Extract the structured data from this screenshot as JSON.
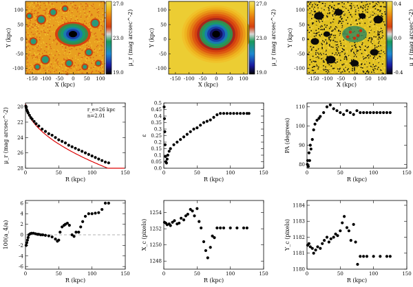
{
  "figure": {
    "panels": [
      {
        "id": "p1",
        "type": "heatmap",
        "xlabel": "X (kpc)",
        "ylabel": "Y (kpc)",
        "xticks": [
          -150,
          -100,
          -50,
          0,
          50,
          100
        ],
        "yticks": [
          -100,
          -50,
          0,
          50,
          100
        ],
        "xlim": [
          -175,
          115
        ],
        "ylim": [
          -120,
          130
        ],
        "colorbar": {
          "label": "μ_r (mag arcsec^-2)",
          "labels": [
            "27.0",
            "23.0",
            "19.0"
          ],
          "vmin": 19.0,
          "vmax": 27.0
        },
        "description": "image"
      },
      {
        "id": "p2",
        "type": "heatmap",
        "xlabel": "X (kpc)",
        "ylabel": "Y (kpc)",
        "xticks": [
          -150,
          -100,
          -50,
          0,
          50,
          100
        ],
        "yticks": [
          -100,
          -50,
          0,
          50,
          100
        ],
        "xlim": [
          -175,
          115
        ],
        "ylim": [
          -120,
          130
        ],
        "colorbar": {
          "label": "μ_r (mag arcsec^-2)",
          "labels": [
            "27.0",
            "23.0",
            "19.0"
          ],
          "vmin": 19.0,
          "vmax": 27.0
        },
        "description": "model"
      },
      {
        "id": "p3",
        "type": "heatmap",
        "xlabel": "X (kpc)",
        "ylabel": "Y (kpc)",
        "xticks": [
          -150,
          -100,
          -50,
          0,
          50,
          100
        ],
        "yticks": [
          -100,
          -50,
          0,
          50,
          100
        ],
        "xlim": [
          -175,
          115
        ],
        "ylim": [
          -120,
          130
        ],
        "colorbar": {
          "label": "μ_r (mag arcsec^-2)",
          "labels": [
            "0.4",
            "0.0",
            "-0.4"
          ],
          "vmin": -0.4,
          "vmax": 0.4
        },
        "description": "residual"
      }
    ]
  },
  "chart_data": [
    {
      "id": "p4",
      "type": "scatter",
      "xlabel": "R (kpc)",
      "ylabel": "μ_r (mag arcsec^-2)",
      "xlim": [
        0,
        150
      ],
      "ylim": [
        28,
        19.5
      ],
      "xticks": [
        0,
        50,
        100,
        150
      ],
      "yticks": [
        20,
        22,
        24,
        26,
        28
      ],
      "annotations": [
        "r_e=26 kpc",
        "n=2.01"
      ],
      "fit": {
        "type": "sersic",
        "re": 26,
        "n": 2.01,
        "mu_e": 23.3,
        "color": "#dd0000"
      },
      "series": [
        {
          "name": "μ_r",
          "x": [
            0.5,
            1,
            2,
            3,
            4,
            6,
            8,
            10,
            13,
            16,
            20,
            25,
            30,
            35,
            40,
            45,
            50,
            55,
            60,
            65,
            70,
            75,
            80,
            85,
            90,
            95,
            100,
            105,
            110,
            115,
            120,
            125
          ],
          "y": [
            19.9,
            20.1,
            20.4,
            20.6,
            20.8,
            21.1,
            21.4,
            21.6,
            21.9,
            22.2,
            22.5,
            22.9,
            23.2,
            23.5,
            23.7,
            24.0,
            24.3,
            24.5,
            24.7,
            25.0,
            25.2,
            25.4,
            25.6,
            25.8,
            26.0,
            26.2,
            26.4,
            26.6,
            26.8,
            27.0,
            27.2,
            27.3
          ]
        }
      ]
    },
    {
      "id": "p5",
      "type": "scatter",
      "xlabel": "R (kpc)",
      "ylabel": "ε",
      "xlim": [
        0,
        150
      ],
      "ylim": [
        0,
        0.5
      ],
      "xticks": [
        0,
        50,
        100,
        150
      ],
      "yticks": [
        0.0,
        0.05,
        0.1,
        0.15,
        0.2,
        0.25,
        0.3,
        0.35,
        0.4,
        0.45,
        0.5
      ],
      "ytickLabels": [
        "0.0",
        "0.05",
        "0.1",
        "0.15",
        "0.2",
        "0.25",
        "0.3",
        "0.35",
        "0.4",
        "0.45",
        "0.5"
      ],
      "series": [
        {
          "name": "ε",
          "x": [
            0.5,
            1,
            1.5,
            2,
            2.5,
            3,
            4,
            5,
            6,
            8,
            10,
            15,
            20,
            25,
            30,
            35,
            40,
            45,
            50,
            55,
            60,
            65,
            70,
            75,
            80,
            85,
            90,
            95,
            100,
            105,
            110,
            115,
            120,
            125,
            128
          ],
          "y": [
            0.47,
            0.38,
            0.28,
            0.18,
            0.09,
            0.05,
            0.04,
            0.07,
            0.1,
            0.13,
            0.15,
            0.18,
            0.2,
            0.22,
            0.24,
            0.26,
            0.28,
            0.3,
            0.31,
            0.33,
            0.35,
            0.36,
            0.37,
            0.39,
            0.41,
            0.42,
            0.42,
            0.42,
            0.42,
            0.42,
            0.42,
            0.42,
            0.42,
            0.42,
            0.42
          ]
        }
      ]
    },
    {
      "id": "p6",
      "type": "scatter",
      "xlabel": "R (kpc)",
      "ylabel": "PA (degrees)",
      "xlim": [
        0,
        150
      ],
      "ylim": [
        78,
        112
      ],
      "xticks": [
        0,
        50,
        100,
        150
      ],
      "yticks": [
        80,
        90,
        100,
        110
      ],
      "series": [
        {
          "name": "PA",
          "x": [
            0.5,
            1,
            2,
            3,
            4,
            5,
            6,
            8,
            10,
            12,
            15,
            18,
            20,
            25,
            30,
            35,
            40,
            45,
            50,
            55,
            60,
            65,
            70,
            75,
            80,
            85,
            90,
            95,
            100,
            105,
            110,
            115,
            120,
            125
          ],
          "y": [
            80,
            82,
            79,
            86,
            82,
            90,
            88,
            93,
            98,
            101,
            103,
            104,
            105,
            107,
            110,
            111,
            109,
            108,
            107,
            106,
            108,
            107,
            106,
            108,
            107,
            107,
            107,
            107,
            107,
            107,
            107,
            107,
            107,
            107
          ]
        }
      ]
    },
    {
      "id": "p7",
      "type": "scatter",
      "xlabel": "R (kpc)",
      "ylabel": "100(a_4/a)",
      "xlim": [
        0,
        150
      ],
      "ylim": [
        -6.5,
        6.5
      ],
      "xticks": [
        0,
        50,
        100,
        150
      ],
      "yticks": [
        -6,
        -4,
        -2,
        0,
        2,
        4,
        6
      ],
      "reference_line": 0,
      "series": [
        {
          "name": "a4",
          "x": [
            1,
            2,
            3,
            4,
            5,
            7,
            9,
            12,
            15,
            18,
            20,
            23,
            26,
            30,
            35,
            40,
            45,
            48,
            50,
            52,
            55,
            58,
            60,
            63,
            66,
            70,
            73,
            76,
            80,
            83,
            86,
            90,
            95,
            100,
            105,
            110,
            115,
            120,
            125
          ],
          "y": [
            -2.0,
            -1.5,
            -1.0,
            -0.5,
            0,
            0.2,
            0.3,
            0.3,
            0.2,
            0.1,
            0.1,
            0,
            0,
            -0.1,
            -0.2,
            -0.4,
            -0.8,
            -1.2,
            -1.0,
            0.5,
            1.5,
            1.8,
            2.0,
            2.2,
            1.8,
            0,
            -0.3,
            0.5,
            0.5,
            1.5,
            2.5,
            3.5,
            4.0,
            4.0,
            4.1,
            4.2,
            4.8,
            6.0,
            6.0
          ]
        }
      ]
    },
    {
      "id": "p8",
      "type": "scatter",
      "xlabel": "R (kpc)",
      "ylabel": "X_c (pixels)",
      "xlim": [
        0,
        150
      ],
      "ylim": [
        1247,
        1255.5
      ],
      "xticks": [
        0,
        50,
        100,
        150
      ],
      "yticks": [
        1248,
        1250,
        1252,
        1254
      ],
      "series": [
        {
          "name": "Xc",
          "x": [
            1,
            3,
            5,
            8,
            10,
            13,
            16,
            20,
            23,
            26,
            30,
            33,
            36,
            40,
            43,
            46,
            50,
            53,
            56,
            60,
            63,
            66,
            70,
            73,
            76,
            80,
            85,
            90,
            100,
            110,
            120,
            125
          ],
          "y": [
            1252.8,
            1252.7,
            1252.5,
            1252.6,
            1252.4,
            1252.8,
            1253.0,
            1252.6,
            1252.7,
            1253.3,
            1253.1,
            1253.6,
            1253.8,
            1254.4,
            1254.2,
            1253.6,
            1254.5,
            1252.9,
            1252.1,
            1250.4,
            1249.3,
            1248.4,
            1249.7,
            1251.1,
            1250.9,
            1252.1,
            1252.1,
            1252.1,
            1252.1,
            1252.1,
            1252.1,
            1252.1
          ]
        }
      ]
    },
    {
      "id": "p9",
      "type": "scatter",
      "xlabel": "R (kpc)",
      "ylabel": "Y_c (pixels)",
      "xlim": [
        0,
        150
      ],
      "ylim": [
        1180,
        1184.3
      ],
      "xticks": [
        0,
        50,
        100,
        150
      ],
      "yticks": [
        1180,
        1181,
        1182,
        1183,
        1184
      ],
      "series": [
        {
          "name": "Yc",
          "x": [
            1,
            3,
            5,
            8,
            10,
            13,
            16,
            20,
            23,
            26,
            30,
            33,
            36,
            40,
            43,
            46,
            50,
            53,
            56,
            60,
            63,
            66,
            70,
            73,
            76,
            80,
            85,
            90,
            100,
            110,
            120,
            125
          ],
          "y": [
            1181.5,
            1181.6,
            1181.4,
            1181.3,
            1181.0,
            1181.2,
            1181.4,
            1181.3,
            1181.6,
            1181.8,
            1182.0,
            1181.7,
            1181.9,
            1182.0,
            1182.2,
            1182.1,
            1182.4,
            1182.9,
            1183.3,
            1182.6,
            1182.4,
            1181.8,
            1182.8,
            1181.7,
            1180.3,
            1180.8,
            1180.8,
            1180.8,
            1180.8,
            1180.8,
            1180.8,
            1180.8
          ]
        }
      ]
    }
  ]
}
